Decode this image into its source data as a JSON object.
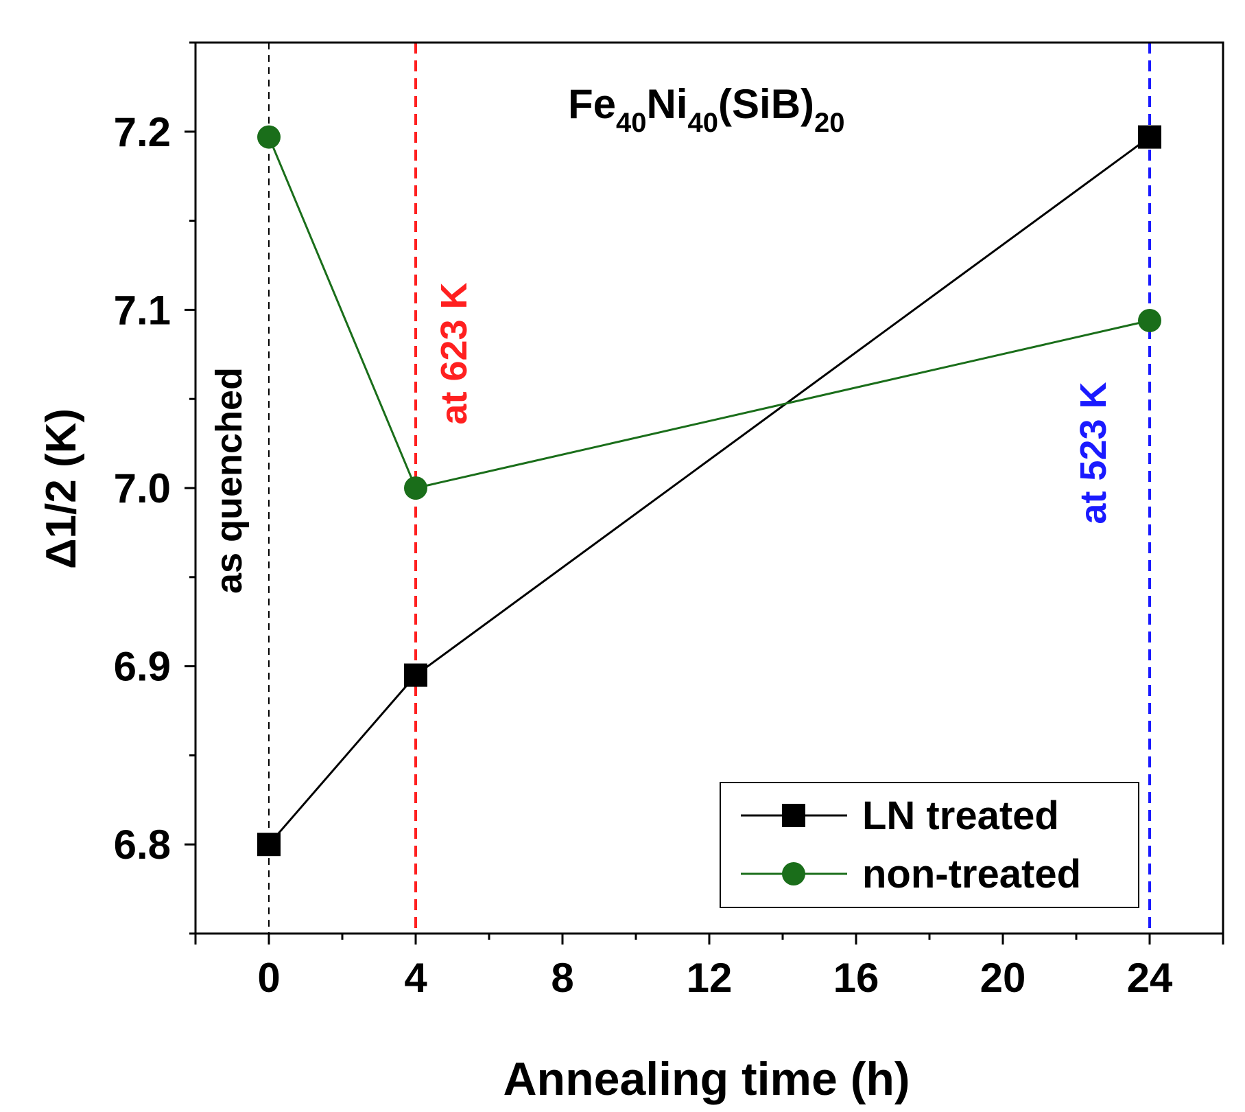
{
  "chart_data": {
    "type": "line",
    "title": {
      "base1": "Fe",
      "sub1": "40",
      "base2": "Ni",
      "sub2": "40",
      "base3": "(SiB)",
      "sub3": "20"
    },
    "xlabel": "Annealing time (h)",
    "ylabel": "Δ1/2 (K)",
    "xlim": [
      -2,
      26
    ],
    "ylim": [
      6.75,
      7.25
    ],
    "xticks": [
      0,
      4,
      8,
      12,
      16,
      20,
      24
    ],
    "xtick_labels": [
      "0",
      "4",
      "8",
      "12",
      "16",
      "20",
      "24"
    ],
    "yticks": [
      6.8,
      6.9,
      7.0,
      7.1,
      7.2
    ],
    "ytick_labels": [
      "6.8",
      "6.9",
      "7.0",
      "7.1",
      "7.2"
    ],
    "series": [
      {
        "name": "LN treated",
        "color": "#000000",
        "marker": "square",
        "x": [
          0,
          4,
          24
        ],
        "y": [
          6.8,
          6.895,
          7.197
        ]
      },
      {
        "name": "non-treated",
        "color": "#1a6e1a",
        "marker": "circle",
        "x": [
          0,
          4,
          24
        ],
        "y": [
          7.197,
          7.0,
          7.094
        ]
      }
    ],
    "vlines": [
      {
        "x": 0,
        "color": "#000000",
        "label": "as quenched"
      },
      {
        "x": 4,
        "color": "#ff2020",
        "label": "at 623 K"
      },
      {
        "x": 24,
        "color": "#1a1aff",
        "label": "at 523 K"
      }
    ],
    "legend_position": "bottom-right"
  }
}
